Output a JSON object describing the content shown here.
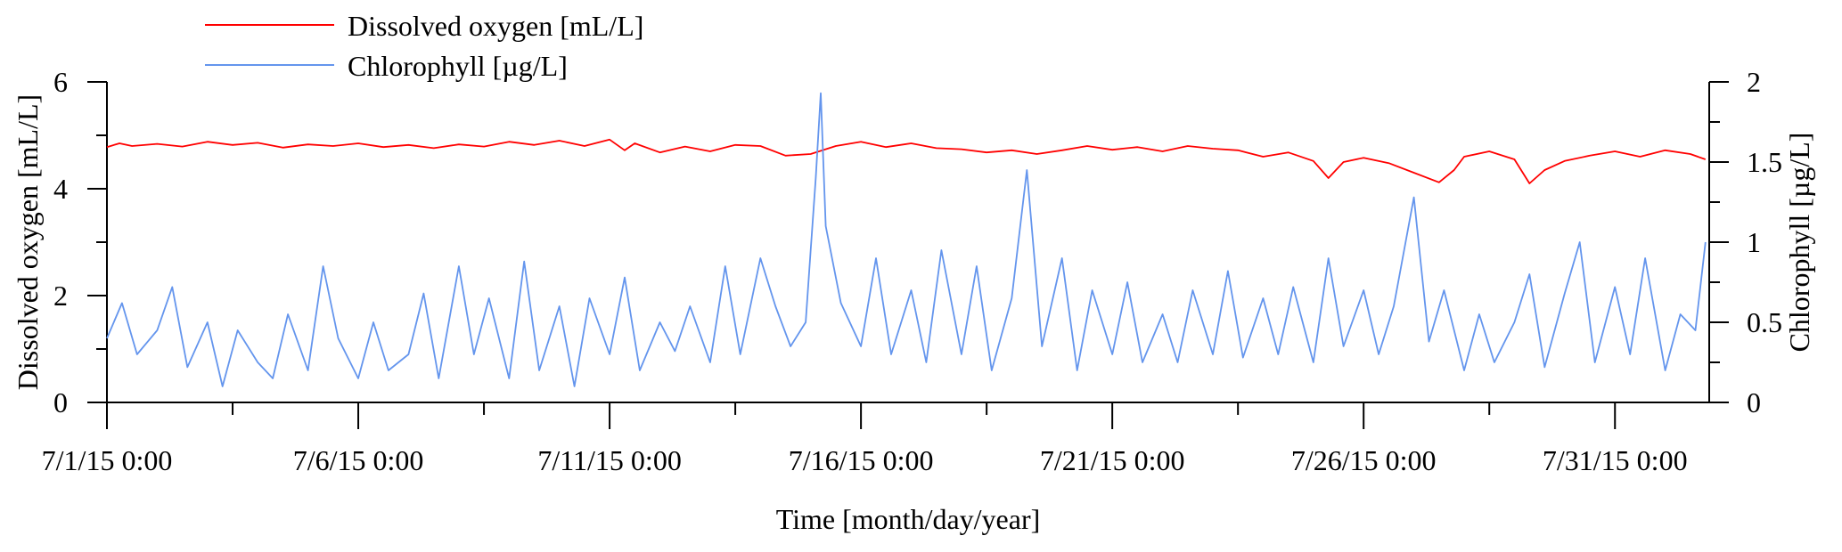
{
  "chart_data": {
    "type": "line",
    "title": "",
    "xlabel": "Time [month/day/year]",
    "ylabel_left": "Dissolved oxygen [mL/L]",
    "ylabel_right": "Chlorophyll [µg/L]",
    "x_range": [
      "7/1/15 0:00",
      "8/1/15 21:00"
    ],
    "ylim_left": [
      0,
      6
    ],
    "ylim_right": [
      0,
      2
    ],
    "x_tick_labels": [
      "7/1/15 0:00",
      "7/6/15 0:00",
      "7/11/15 0:00",
      "7/16/15 0:00",
      "7/21/15 0:00",
      "7/26/15 0:00",
      "7/31/15 0:00"
    ],
    "y_left_ticks": [
      "0",
      "2",
      "4",
      "6"
    ],
    "y_right_ticks": [
      "0",
      "0.5",
      "1",
      "1.5",
      "2"
    ],
    "grid": false,
    "legend_position": "top-left, above plot",
    "legend": [
      {
        "label": "Dissolved oxygen [mL/L]",
        "color": "#ff0000"
      },
      {
        "label": "Chlorophyll [µg/L]",
        "color": "#6495ed"
      }
    ],
    "series": [
      {
        "name": "Dissolved oxygen [mL/L]",
        "axis": "left",
        "color": "#ff0000",
        "x_unit": "day",
        "points": [
          [
            0,
            4.78
          ],
          [
            0.25,
            4.85
          ],
          [
            0.5,
            4.8
          ],
          [
            1,
            4.84
          ],
          [
            1.5,
            4.79
          ],
          [
            2,
            4.88
          ],
          [
            2.5,
            4.82
          ],
          [
            3,
            4.86
          ],
          [
            3.5,
            4.77
          ],
          [
            4,
            4.83
          ],
          [
            4.5,
            4.8
          ],
          [
            5,
            4.85
          ],
          [
            5.5,
            4.78
          ],
          [
            6,
            4.82
          ],
          [
            6.5,
            4.76
          ],
          [
            7,
            4.83
          ],
          [
            7.5,
            4.79
          ],
          [
            8,
            4.88
          ],
          [
            8.5,
            4.82
          ],
          [
            9,
            4.9
          ],
          [
            9.5,
            4.8
          ],
          [
            10,
            4.92
          ],
          [
            10.3,
            4.72
          ],
          [
            10.5,
            4.85
          ],
          [
            11,
            4.68
          ],
          [
            11.5,
            4.79
          ],
          [
            12,
            4.7
          ],
          [
            12.5,
            4.82
          ],
          [
            13,
            4.8
          ],
          [
            13.5,
            4.62
          ],
          [
            14,
            4.65
          ],
          [
            14.5,
            4.8
          ],
          [
            15,
            4.88
          ],
          [
            15.5,
            4.78
          ],
          [
            16,
            4.85
          ],
          [
            16.5,
            4.76
          ],
          [
            17,
            4.74
          ],
          [
            17.5,
            4.68
          ],
          [
            18,
            4.72
          ],
          [
            18.5,
            4.65
          ],
          [
            19,
            4.72
          ],
          [
            19.5,
            4.8
          ],
          [
            20,
            4.73
          ],
          [
            20.5,
            4.78
          ],
          [
            21,
            4.7
          ],
          [
            21.5,
            4.8
          ],
          [
            22,
            4.75
          ],
          [
            22.5,
            4.72
          ],
          [
            23,
            4.6
          ],
          [
            23.5,
            4.68
          ],
          [
            24,
            4.52
          ],
          [
            24.3,
            4.2
          ],
          [
            24.6,
            4.5
          ],
          [
            25,
            4.58
          ],
          [
            25.5,
            4.48
          ],
          [
            26,
            4.3
          ],
          [
            26.5,
            4.12
          ],
          [
            26.8,
            4.35
          ],
          [
            27,
            4.6
          ],
          [
            27.5,
            4.7
          ],
          [
            28,
            4.55
          ],
          [
            28.3,
            4.1
          ],
          [
            28.6,
            4.35
          ],
          [
            29,
            4.52
          ],
          [
            29.5,
            4.62
          ],
          [
            30,
            4.7
          ],
          [
            30.5,
            4.6
          ],
          [
            31,
            4.72
          ],
          [
            31.5,
            4.65
          ],
          [
            31.8,
            4.55
          ]
        ]
      },
      {
        "name": "Chlorophyll [µg/L]",
        "axis": "right",
        "color": "#6495ed",
        "x_unit": "day",
        "points": [
          [
            0,
            0.4
          ],
          [
            0.3,
            0.62
          ],
          [
            0.6,
            0.3
          ],
          [
            1,
            0.45
          ],
          [
            1.3,
            0.72
          ],
          [
            1.6,
            0.22
          ],
          [
            2,
            0.5
          ],
          [
            2.3,
            0.1
          ],
          [
            2.6,
            0.45
          ],
          [
            3,
            0.25
          ],
          [
            3.3,
            0.15
          ],
          [
            3.6,
            0.55
          ],
          [
            4,
            0.2
          ],
          [
            4.3,
            0.85
          ],
          [
            4.6,
            0.4
          ],
          [
            5,
            0.15
          ],
          [
            5.3,
            0.5
          ],
          [
            5.6,
            0.2
          ],
          [
            6,
            0.3
          ],
          [
            6.3,
            0.68
          ],
          [
            6.6,
            0.15
          ],
          [
            7,
            0.85
          ],
          [
            7.3,
            0.3
          ],
          [
            7.6,
            0.65
          ],
          [
            8,
            0.15
          ],
          [
            8.3,
            0.88
          ],
          [
            8.6,
            0.2
          ],
          [
            9,
            0.6
          ],
          [
            9.3,
            0.1
          ],
          [
            9.6,
            0.65
          ],
          [
            10,
            0.3
          ],
          [
            10.3,
            0.78
          ],
          [
            10.6,
            0.2
          ],
          [
            11,
            0.5
          ],
          [
            11.3,
            0.32
          ],
          [
            11.6,
            0.6
          ],
          [
            12,
            0.25
          ],
          [
            12.3,
            0.85
          ],
          [
            12.6,
            0.3
          ],
          [
            13,
            0.9
          ],
          [
            13.3,
            0.6
          ],
          [
            13.6,
            0.35
          ],
          [
            13.9,
            0.5
          ],
          [
            14,
            0.95
          ],
          [
            14.1,
            1.4
          ],
          [
            14.2,
            1.93
          ],
          [
            14.3,
            1.1
          ],
          [
            14.6,
            0.62
          ],
          [
            15,
            0.35
          ],
          [
            15.3,
            0.9
          ],
          [
            15.6,
            0.3
          ],
          [
            16,
            0.7
          ],
          [
            16.3,
            0.25
          ],
          [
            16.6,
            0.95
          ],
          [
            17,
            0.3
          ],
          [
            17.3,
            0.85
          ],
          [
            17.6,
            0.2
          ],
          [
            18,
            0.65
          ],
          [
            18.3,
            1.45
          ],
          [
            18.6,
            0.35
          ],
          [
            19,
            0.9
          ],
          [
            19.3,
            0.2
          ],
          [
            19.6,
            0.7
          ],
          [
            20,
            0.3
          ],
          [
            20.3,
            0.75
          ],
          [
            20.6,
            0.25
          ],
          [
            21,
            0.55
          ],
          [
            21.3,
            0.25
          ],
          [
            21.6,
            0.7
          ],
          [
            22,
            0.3
          ],
          [
            22.3,
            0.82
          ],
          [
            22.6,
            0.28
          ],
          [
            23,
            0.65
          ],
          [
            23.3,
            0.3
          ],
          [
            23.6,
            0.72
          ],
          [
            24,
            0.25
          ],
          [
            24.3,
            0.9
          ],
          [
            24.6,
            0.35
          ],
          [
            25,
            0.7
          ],
          [
            25.3,
            0.3
          ],
          [
            25.6,
            0.6
          ],
          [
            26,
            1.28
          ],
          [
            26.3,
            0.38
          ],
          [
            26.6,
            0.7
          ],
          [
            27,
            0.2
          ],
          [
            27.3,
            0.55
          ],
          [
            27.6,
            0.25
          ],
          [
            28,
            0.5
          ],
          [
            28.3,
            0.8
          ],
          [
            28.6,
            0.22
          ],
          [
            29,
            0.68
          ],
          [
            29.3,
            1.0
          ],
          [
            29.6,
            0.25
          ],
          [
            30,
            0.72
          ],
          [
            30.3,
            0.3
          ],
          [
            30.6,
            0.9
          ],
          [
            31,
            0.2
          ],
          [
            31.3,
            0.55
          ],
          [
            31.6,
            0.45
          ],
          [
            31.8,
            1.0
          ]
        ]
      }
    ]
  }
}
